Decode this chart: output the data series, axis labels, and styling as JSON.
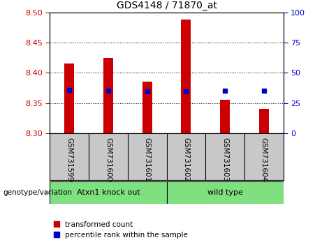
{
  "title": "GDS4148 / 71870_at",
  "samples": [
    "GSM731599",
    "GSM731600",
    "GSM731601",
    "GSM731602",
    "GSM731603",
    "GSM731604"
  ],
  "red_bar_values": [
    8.415,
    8.425,
    8.385,
    8.488,
    8.355,
    8.34
  ],
  "blue_marker_values": [
    8.372,
    8.37,
    8.369,
    8.369,
    8.37,
    8.37
  ],
  "ylim": [
    8.3,
    8.5
  ],
  "y_ticks_left": [
    8.3,
    8.35,
    8.4,
    8.45,
    8.5
  ],
  "y_ticks_right": [
    0,
    25,
    50,
    75,
    100
  ],
  "bar_color": "#CC0000",
  "marker_color": "#0000CC",
  "tick_color_left": "#CC0000",
  "tick_color_right": "#0000CC",
  "sample_area_color": "#C8C8C8",
  "green_color": "#7EE07E",
  "group1_label": "Atxn1 knock out",
  "group2_label": "wild type",
  "legend_red_label": "transformed count",
  "legend_blue_label": "percentile rank within the sample",
  "genotype_label": "genotype/variation",
  "bar_width": 0.25,
  "title_fontsize": 10,
  "tick_fontsize": 8,
  "label_fontsize": 7.5
}
